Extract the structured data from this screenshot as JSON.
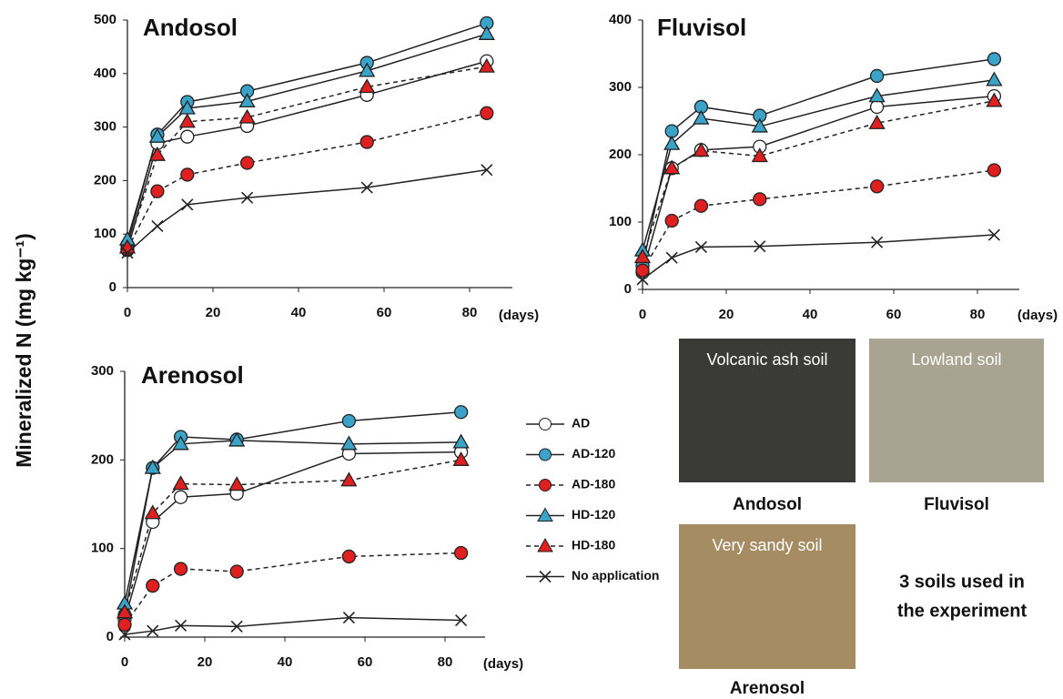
{
  "chart_data": [
    {
      "type": "line",
      "title": "Andosol",
      "x_label": "(days)",
      "x": [
        0,
        7,
        14,
        28,
        56,
        84
      ],
      "xlim": [
        0,
        90
      ],
      "xticks": [
        0,
        20,
        40,
        60,
        80
      ],
      "ylim": [
        0,
        500
      ],
      "yticks": [
        0,
        100,
        200,
        300,
        400,
        500
      ],
      "series": [
        {
          "marker": "circle",
          "color": "#ffffff",
          "dash": false,
          "values": [
            70,
            270,
            282,
            302,
            360,
            423
          ]
        },
        {
          "marker": "circle",
          "color": "#3ba3c8",
          "dash": false,
          "values": [
            80,
            286,
            347,
            367,
            420,
            494
          ]
        },
        {
          "marker": "circle",
          "color": "#e02020",
          "dash": true,
          "values": [
            72,
            180,
            211,
            233,
            272,
            326
          ]
        },
        {
          "marker": "triangle",
          "color": "#3ba3c8",
          "dash": false,
          "values": [
            90,
            282,
            335,
            348,
            405,
            474
          ]
        },
        {
          "marker": "triangle",
          "color": "#e02020",
          "dash": true,
          "values": [
            75,
            248,
            310,
            318,
            375,
            413
          ]
        },
        {
          "marker": "cross",
          "color": "#222222",
          "dash": false,
          "values": [
            65,
            115,
            155,
            168,
            187,
            220
          ]
        }
      ]
    },
    {
      "type": "line",
      "title": "Fluvisol",
      "x_label": "(days)",
      "x": [
        0,
        7,
        14,
        28,
        56,
        84
      ],
      "xlim": [
        0,
        90
      ],
      "xticks": [
        0,
        20,
        40,
        60,
        80
      ],
      "ylim": [
        0,
        400
      ],
      "yticks": [
        0,
        100,
        200,
        300,
        400
      ],
      "series": [
        {
          "marker": "circle",
          "color": "#ffffff",
          "dash": false,
          "values": [
            25,
            180,
            207,
            212,
            271,
            287
          ]
        },
        {
          "marker": "circle",
          "color": "#3ba3c8",
          "dash": false,
          "values": [
            35,
            235,
            271,
            258,
            317,
            342
          ]
        },
        {
          "marker": "circle",
          "color": "#e02020",
          "dash": true,
          "values": [
            28,
            102,
            124,
            134,
            153,
            177
          ]
        },
        {
          "marker": "triangle",
          "color": "#3ba3c8",
          "dash": false,
          "values": [
            58,
            216,
            254,
            242,
            287,
            311
          ]
        },
        {
          "marker": "triangle",
          "color": "#e02020",
          "dash": true,
          "values": [
            48,
            180,
            206,
            198,
            247,
            280
          ]
        },
        {
          "marker": "cross",
          "color": "#222222",
          "dash": false,
          "values": [
            15,
            47,
            63,
            64,
            70,
            81
          ]
        }
      ]
    },
    {
      "type": "line",
      "title": "Arenosol",
      "x_label": "(days)",
      "x": [
        0,
        7,
        14,
        28,
        56,
        84
      ],
      "xlim": [
        0,
        90
      ],
      "xticks": [
        0,
        20,
        40,
        60,
        80
      ],
      "ylim": [
        0,
        300
      ],
      "yticks": [
        0,
        100,
        200,
        300
      ],
      "series": [
        {
          "name": "AD",
          "marker": "circle",
          "color": "#ffffff",
          "dash": false,
          "values": [
            20,
            130,
            158,
            162,
            207,
            209
          ]
        },
        {
          "name": "AD-120",
          "marker": "circle",
          "color": "#3ba3c8",
          "dash": false,
          "values": [
            25,
            191,
            226,
            223,
            244,
            254
          ]
        },
        {
          "name": "AD-180",
          "marker": "circle",
          "color": "#e02020",
          "dash": true,
          "values": [
            14,
            58,
            77,
            74,
            91,
            95
          ]
        },
        {
          "name": "HD-120",
          "marker": "triangle",
          "color": "#3ba3c8",
          "dash": false,
          "values": [
            38,
            191,
            218,
            222,
            218,
            220
          ]
        },
        {
          "name": "HD-180",
          "marker": "triangle",
          "color": "#e02020",
          "dash": true,
          "values": [
            28,
            140,
            173,
            172,
            177,
            200
          ]
        },
        {
          "name": "No application",
          "marker": "cross",
          "color": "#222222",
          "dash": false,
          "values": [
            3,
            7,
            13,
            12,
            22,
            19
          ]
        }
      ]
    }
  ],
  "y_axis_label": "Mineralized N (mg kg⁻¹)",
  "photos": [
    {
      "caption": "Volcanic ash soil",
      "label": "Andosol"
    },
    {
      "caption": "Lowland soil",
      "label": "Fluvisol"
    },
    {
      "caption": "Very sandy soil",
      "label": "Arenosol"
    }
  ],
  "note": [
    "3 soils used in",
    "the experiment"
  ]
}
